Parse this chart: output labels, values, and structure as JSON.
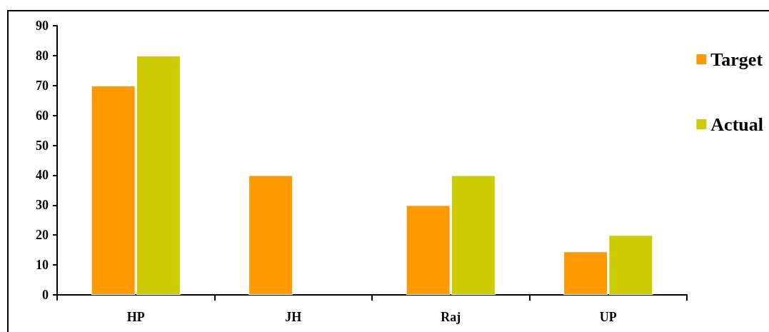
{
  "chart_data": {
    "type": "bar",
    "categories": [
      "HP",
      "JH",
      "Raj",
      "UP"
    ],
    "series": [
      {
        "name": "Target",
        "color": "#ff9900",
        "values": [
          70,
          40,
          30,
          14.5
        ]
      },
      {
        "name": "Actual",
        "color": "#cccc00",
        "values": [
          80,
          null,
          40,
          20
        ]
      }
    ],
    "ylim": [
      0,
      90
    ],
    "yticks": [
      0,
      10,
      20,
      30,
      40,
      50,
      60,
      70,
      80,
      90
    ],
    "grid": false,
    "legend": "right"
  }
}
